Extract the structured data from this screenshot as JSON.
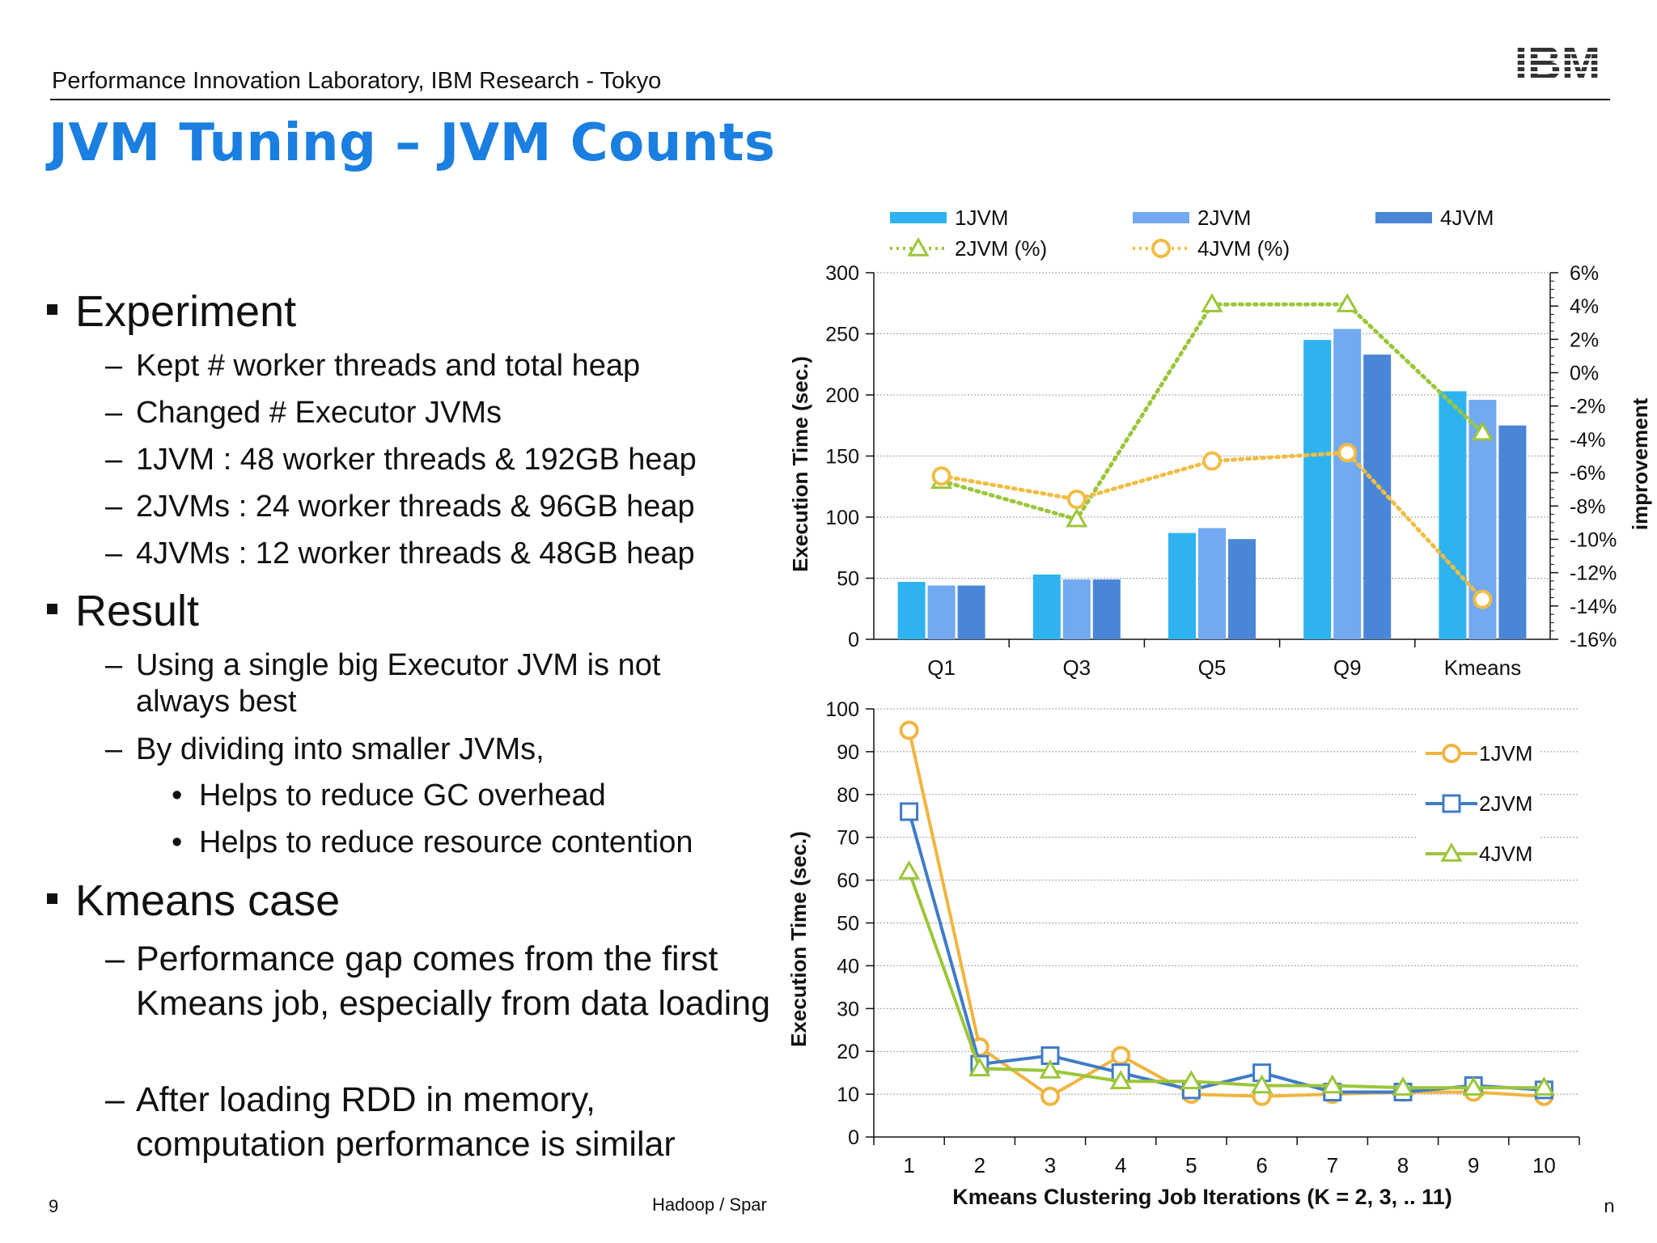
{
  "header": {
    "org": "Performance Innovation Laboratory, IBM Research - Tokyo",
    "logo_text": "IBM"
  },
  "title": "JVM Tuning – JVM Counts",
  "bullets": [
    {
      "label": "Experiment",
      "subs": [
        "Kept # worker threads and total heap",
        "Changed # Executor JVMs",
        "1JVM : 48 worker threads & 192GB heap",
        "2JVMs : 24 worker threads & 96GB heap",
        "4JVMs : 12 worker threads & 48GB heap"
      ]
    },
    {
      "label": "Result",
      "subs": [
        "Using a single big Executor JVM is not always best",
        "By dividing into smaller JVMs,"
      ],
      "subsubs": [
        "Helps to reduce GC overhead",
        "Helps to reduce resource contention"
      ]
    },
    {
      "label": "Kmeans case",
      "subs": [
        "Performance gap comes from the first Kmeans job, especially from data loading",
        "After loading RDD in memory, computation performance is similar"
      ]
    }
  ],
  "footer": {
    "page": "9",
    "text": "Hadoop / Spar",
    "right": "ո"
  },
  "colors": {
    "title": "#1a7fe0",
    "1jvm": "#2eb3f0",
    "2jvm": "#72a9f0",
    "4jvm": "#4a86d6",
    "pct2": "#9cc63a",
    "pct4": "#f0bd45",
    "line1": "#f0b540",
    "line2": "#3f7cc8",
    "line4": "#9cc63a"
  },
  "chart_data": [
    {
      "type": "bar",
      "categories": [
        "Q1",
        "Q3",
        "Q5",
        "Q9",
        "Kmeans"
      ],
      "series": [
        {
          "name": "1JVM",
          "values": [
            47,
            53,
            87,
            245,
            203
          ]
        },
        {
          "name": "2JVM",
          "values": [
            44,
            49,
            91,
            254,
            196
          ]
        },
        {
          "name": "4JVM",
          "values": [
            44,
            49,
            82,
            233,
            175
          ]
        }
      ],
      "secondary_series": [
        {
          "name": "2JVM (%)",
          "type": "line",
          "values": [
            -6.5,
            -8.8,
            4.1,
            4.1,
            -3.6
          ]
        },
        {
          "name": "4JVM (%)",
          "type": "line",
          "values": [
            -6.2,
            -7.6,
            -5.3,
            -4.8,
            -13.6
          ]
        }
      ],
      "ylabel": "Execution Time (sec.)",
      "y2label": "improvement",
      "ylim": [
        0,
        300
      ],
      "yticks": [
        0,
        50,
        100,
        150,
        200,
        250,
        300
      ],
      "y2lim": [
        -16,
        6
      ],
      "y2ticks": [
        "6%",
        "4%",
        "2%",
        "0%",
        "-2%",
        "-4%",
        "-6%",
        "-8%",
        "-10%",
        "-12%",
        "-14%",
        "-16%"
      ],
      "legend": [
        "1JVM",
        "2JVM",
        "4JVM",
        "2JVM (%)",
        "4JVM (%)"
      ],
      "legend_position": "top",
      "grid": true
    },
    {
      "type": "line",
      "x": [
        1,
        2,
        3,
        4,
        5,
        6,
        7,
        8,
        9,
        10
      ],
      "series": [
        {
          "name": "1JVM",
          "values": [
            95,
            21,
            9.5,
            19,
            10,
            9.5,
            10,
            10.5,
            10.5,
            9.5
          ]
        },
        {
          "name": "2JVM",
          "values": [
            76,
            17,
            19,
            15,
            11,
            15,
            10.5,
            10.5,
            12,
            11
          ]
        },
        {
          "name": "4JVM",
          "values": [
            62,
            16,
            15.5,
            13,
            13,
            12,
            12,
            11.5,
            11.5,
            11.5
          ]
        }
      ],
      "xlabel": "Kmeans Clustering Job Iterations (K = 2, 3, .. 11)",
      "ylabel": "Execution Time (sec.)",
      "ylim": [
        0,
        100
      ],
      "yticks": [
        0,
        10,
        20,
        30,
        40,
        50,
        60,
        70,
        80,
        90,
        100
      ],
      "legend_position": "right",
      "grid": true
    }
  ]
}
